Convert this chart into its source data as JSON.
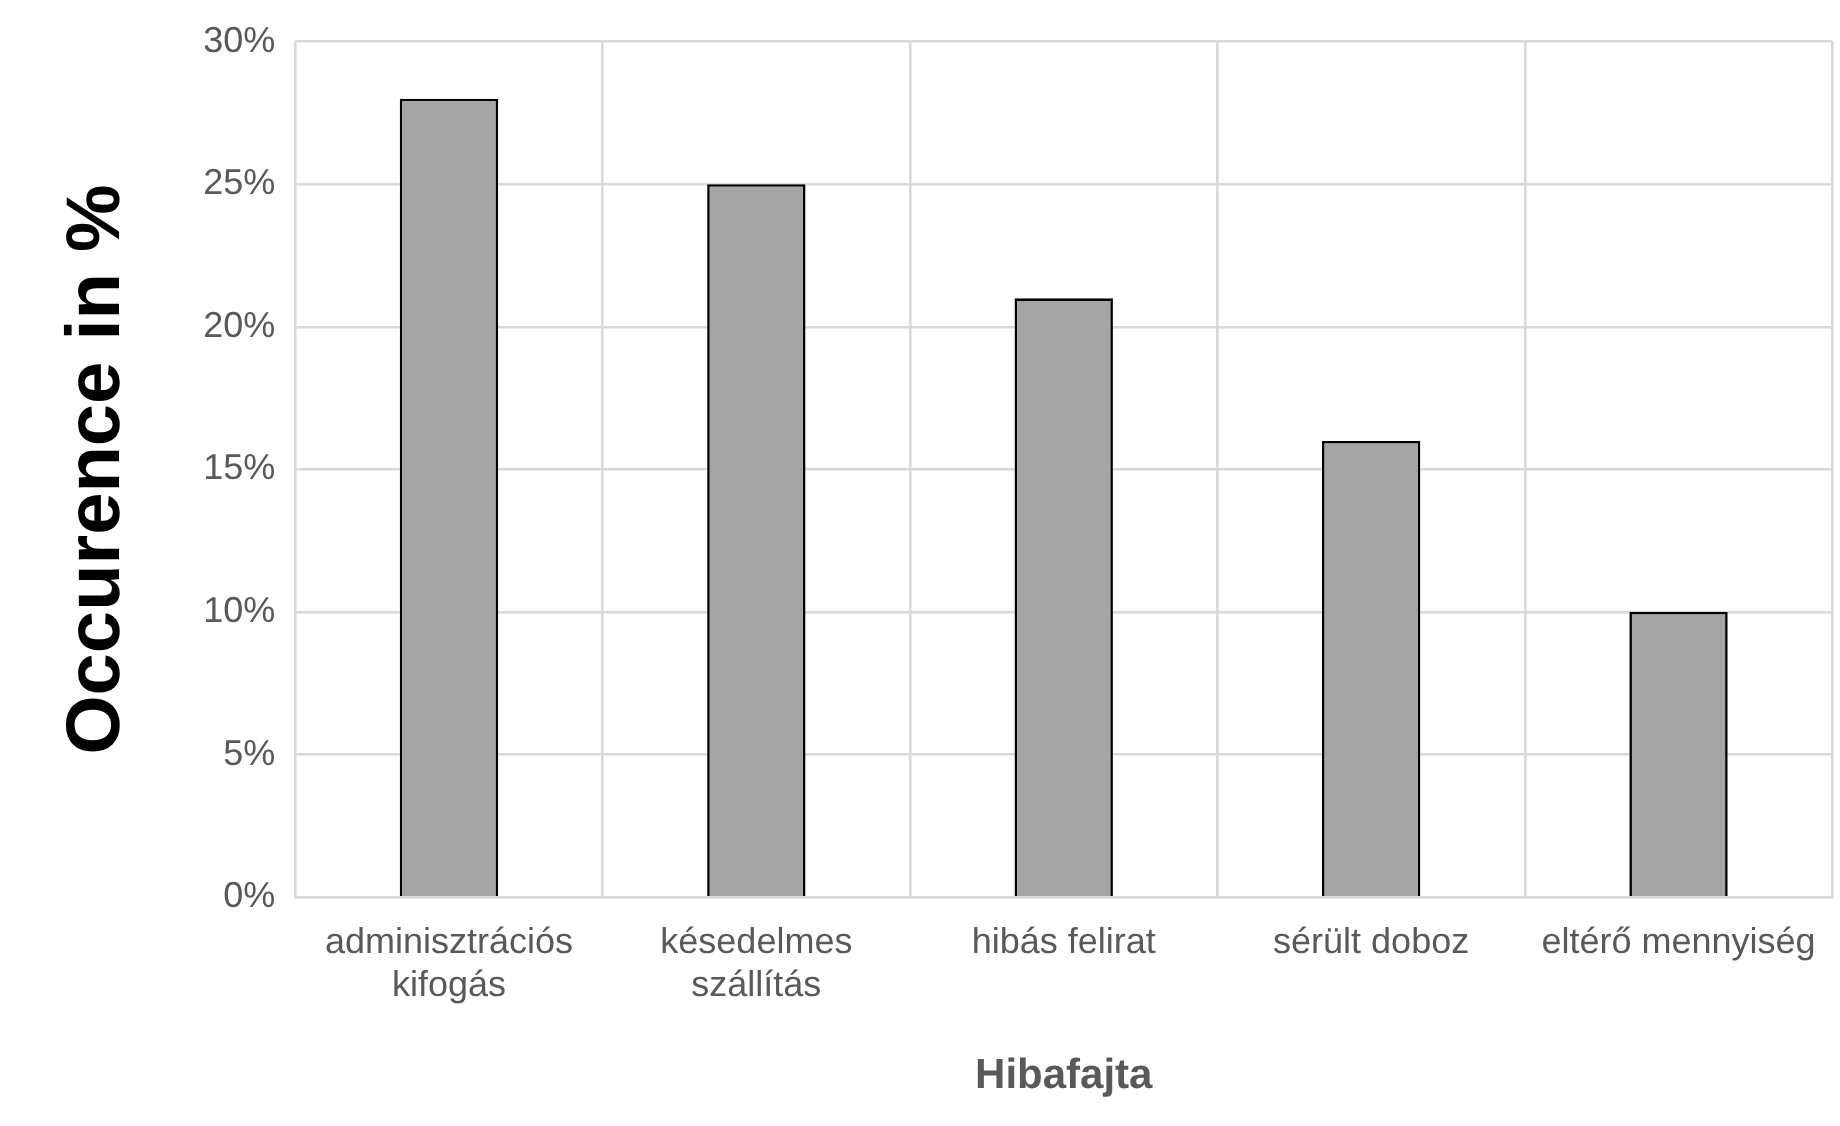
{
  "chart_data": {
    "type": "bar",
    "xlabel": "Hibafajta",
    "ylabel": "Occurence in %",
    "categories": [
      "adminisztrációs kifogás",
      "késedelmes szállítás",
      "hibás felirat",
      "sérült doboz",
      "eltérő mennyiség"
    ],
    "values": [
      28,
      25,
      21,
      16,
      10
    ],
    "color": "#a5a5a5",
    "ylim": [
      0,
      30
    ],
    "yticks": [
      {
        "value": 0,
        "label": "0%"
      },
      {
        "value": 5,
        "label": "5%"
      },
      {
        "value": 10,
        "label": "10%"
      },
      {
        "value": 15,
        "label": "15%"
      },
      {
        "value": 20,
        "label": "20%"
      },
      {
        "value": 25,
        "label": "25%"
      },
      {
        "value": 30,
        "label": "30%"
      }
    ],
    "grid": true,
    "legend": false
  }
}
